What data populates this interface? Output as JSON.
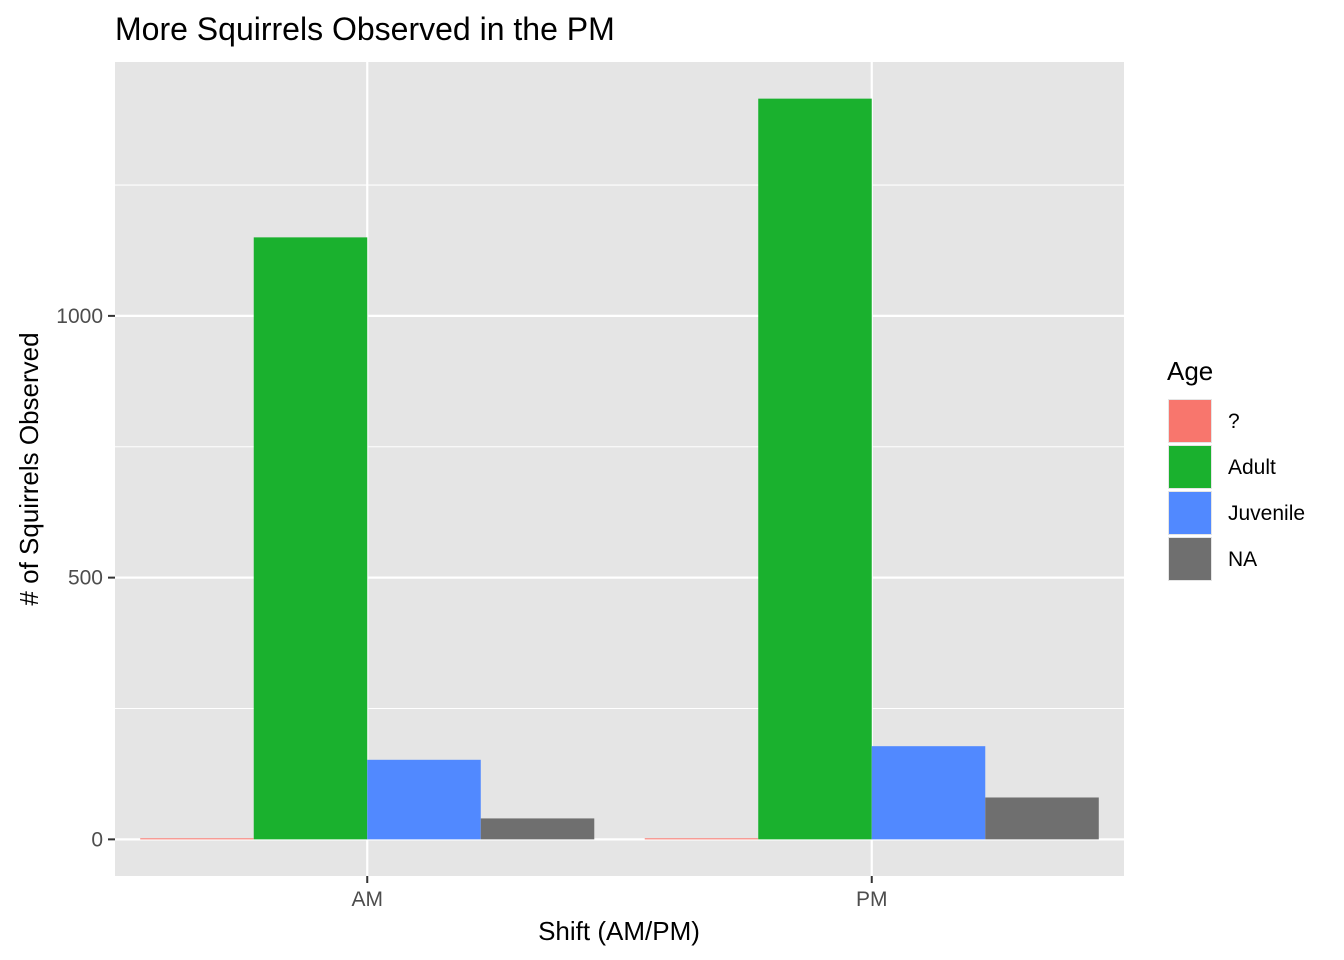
{
  "chart_data": {
    "type": "bar",
    "title": "More Squirrels Observed in the PM",
    "xlabel": "Shift (AM/PM)",
    "ylabel": "# of Squirrels Observed",
    "categories": [
      "AM",
      "PM"
    ],
    "series": [
      {
        "name": "?",
        "color": "#F8766D",
        "values": [
          2,
          2
        ]
      },
      {
        "name": "Adult",
        "color": "#1AB12E",
        "values": [
          1150,
          1415
        ]
      },
      {
        "name": "Juvenile",
        "color": "#5189FF",
        "values": [
          152,
          178
        ]
      },
      {
        "name": "NA",
        "color": "#6F6F6F",
        "values": [
          40,
          80
        ]
      }
    ],
    "yticks": [
      0,
      500,
      1000
    ],
    "ylim": [
      -70,
      1485
    ],
    "grid": true,
    "legend": {
      "title": "Age",
      "position": "right"
    },
    "colors": {
      "panel": "#E5E5E5",
      "grid": "#FFFFFF",
      "tick": "#333333"
    }
  }
}
